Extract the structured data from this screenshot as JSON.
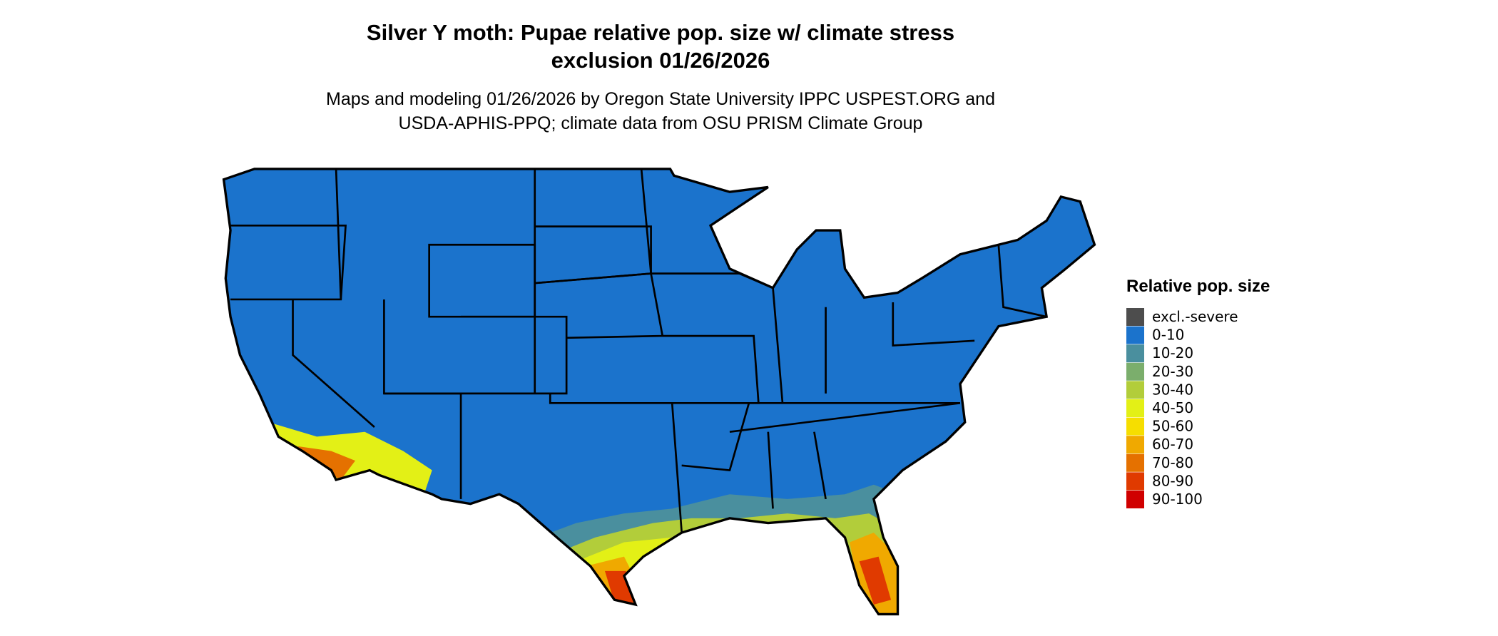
{
  "title_lines": [
    "Silver Y moth: Pupae relative pop. size w/ climate stress",
    "exclusion 01/26/2026"
  ],
  "subtitle_lines": [
    "Maps and modeling 01/26/2026 by Oregon State University IPPC USPEST.ORG and",
    "USDA-APHIS-PPQ; climate data from OSU PRISM Climate Group"
  ],
  "legend": {
    "title": "Relative pop. size",
    "items": [
      {
        "label": "excl.-severe",
        "color": "#4d4d4d"
      },
      {
        "label": "0-10",
        "color": "#1b73cc"
      },
      {
        "label": "10-20",
        "color": "#4a8f9e"
      },
      {
        "label": "20-30",
        "color": "#7bae6c"
      },
      {
        "label": "30-40",
        "color": "#b2cd3a"
      },
      {
        "label": "40-50",
        "color": "#e3f016"
      },
      {
        "label": "50-60",
        "color": "#f6de00"
      },
      {
        "label": "60-70",
        "color": "#f0a900"
      },
      {
        "label": "70-80",
        "color": "#e57100"
      },
      {
        "label": "80-90",
        "color": "#e03a00"
      },
      {
        "label": "90-100",
        "color": "#d00000"
      }
    ]
  }
}
